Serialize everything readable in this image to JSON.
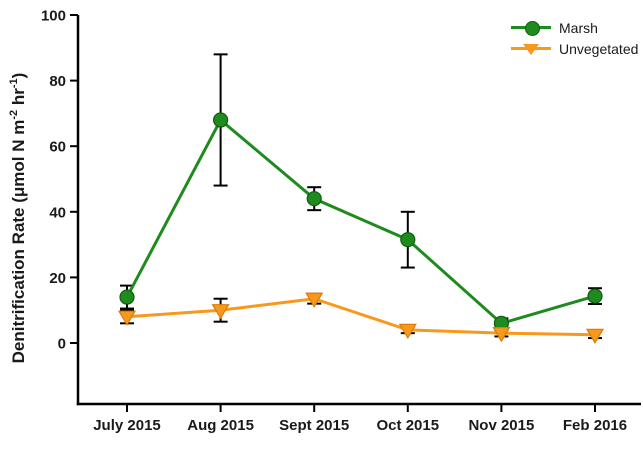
{
  "figure": {
    "background": "#ffffff"
  },
  "chart_data": {
    "type": "line",
    "title": "",
    "categories": [
      "July 2015",
      "Aug 2015",
      "Sept 2015",
      "Oct 2015",
      "Nov 2015",
      "Feb 2016"
    ],
    "series": [
      {
        "name": "Marsh",
        "marker": "circle",
        "color": "#1f8b1f",
        "edge_color": "#0e5c0e",
        "values": [
          14,
          68,
          44,
          31.5,
          6,
          14.3
        ],
        "errors": [
          3.5,
          20,
          3.5,
          8.5,
          1.5,
          2.4
        ]
      },
      {
        "name": "Unvegetated",
        "marker": "triangle-down",
        "color": "#f8981d",
        "edge_color": "#db7d05",
        "values": [
          8,
          10,
          13.5,
          4,
          3,
          2.5
        ],
        "errors": [
          2,
          3.5,
          1.5,
          1,
          1,
          1
        ]
      }
    ],
    "xlabel": "",
    "ylabel": "Denitrification Rate (μmol N m⁻² hr⁻¹)",
    "ylabel_parts": [
      "Denitrification Rate (",
      "μ",
      "mol N m",
      "-2",
      " hr",
      "-1",
      ")"
    ],
    "yticks": [
      0,
      20,
      40,
      60,
      80,
      100
    ],
    "ylim": [
      -19,
      100
    ],
    "grid": false,
    "error_bars": true,
    "error_bar_color": "#000000",
    "axis_color": "#000000",
    "legend": {
      "position": "top-right",
      "items": [
        "Marsh",
        "Unvegetated"
      ]
    }
  }
}
